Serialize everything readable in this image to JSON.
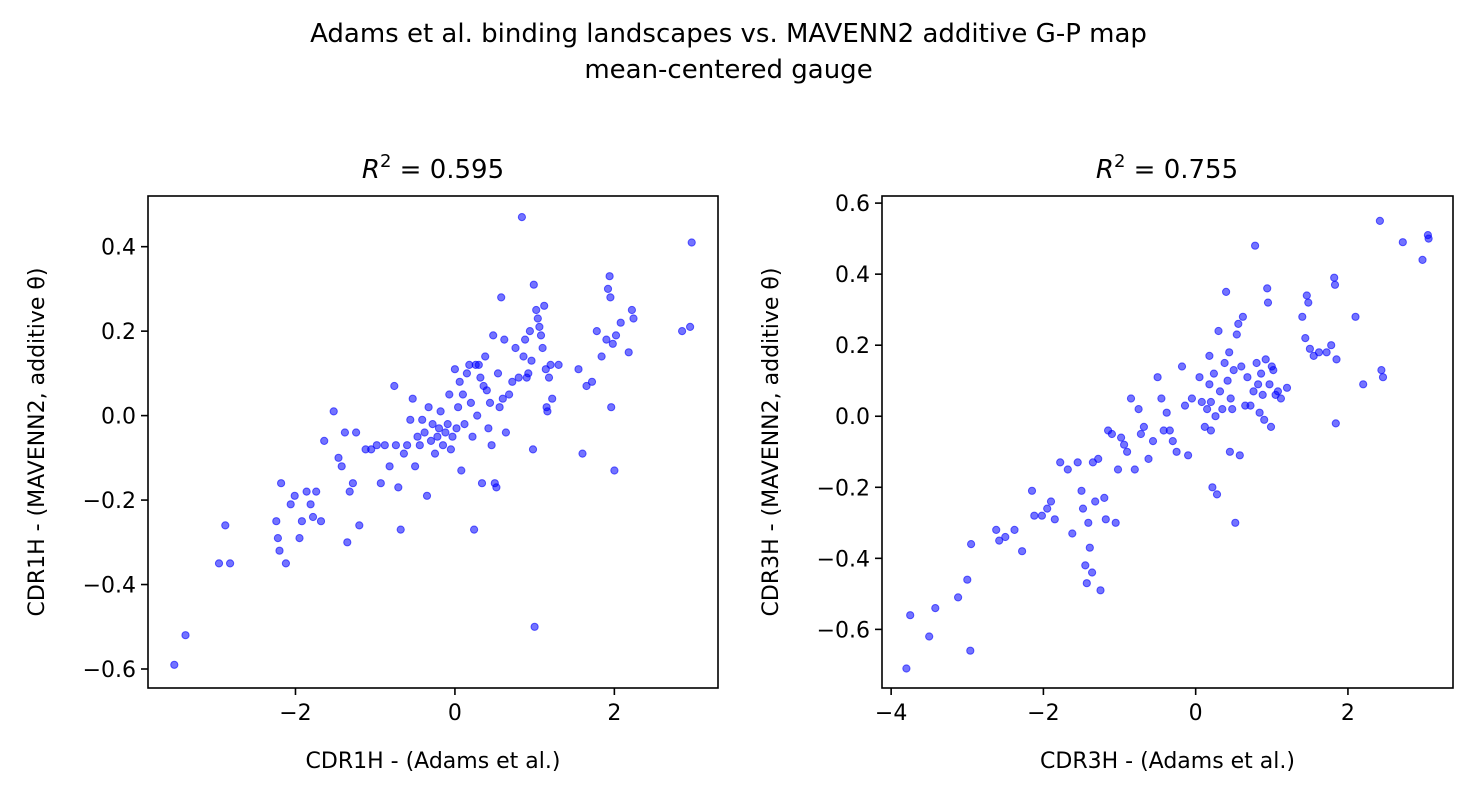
{
  "suptitle": {
    "line1": "Adams et al. binding landscapes vs. MAVENN2 additive G-P map",
    "line2": "mean-centered gauge"
  },
  "colors": {
    "points": "#0000ff",
    "axes": "#000000",
    "background": "#ffffff"
  },
  "chart_data": [
    {
      "type": "scatter",
      "title": "R² = 0.595",
      "title_parts": {
        "r": "R",
        "sup": "2",
        "rest": " = 0.595"
      },
      "xlabel": "CDR1H - (Adams et al.)",
      "ylabel": "CDR1H - (MAVENN2, additive θ)",
      "xlim": [
        -3.85,
        3.3
      ],
      "ylim": [
        -0.645,
        0.52
      ],
      "xticks": [
        -2,
        0,
        2
      ],
      "yticks": [
        -0.6,
        -0.4,
        -0.2,
        0.0,
        0.2,
        0.4
      ],
      "xtick_labels": [
        "−2",
        "0",
        "2"
      ],
      "ytick_labels": [
        "−0.6",
        "−0.4",
        "−0.2",
        "0.0",
        "0.2",
        "0.4"
      ],
      "grid": false,
      "points": [
        [
          -3.52,
          -0.59
        ],
        [
          -3.38,
          -0.52
        ],
        [
          -2.96,
          -0.35
        ],
        [
          -2.88,
          -0.26
        ],
        [
          -2.82,
          -0.35
        ],
        [
          -2.24,
          -0.25
        ],
        [
          -2.22,
          -0.29
        ],
        [
          -2.2,
          -0.32
        ],
        [
          -2.18,
          -0.16
        ],
        [
          -2.12,
          -0.35
        ],
        [
          -2.06,
          -0.21
        ],
        [
          -2.01,
          -0.19
        ],
        [
          -1.95,
          -0.29
        ],
        [
          -1.92,
          -0.25
        ],
        [
          -1.86,
          -0.18
        ],
        [
          -1.81,
          -0.21
        ],
        [
          -1.78,
          -0.24
        ],
        [
          -1.74,
          -0.18
        ],
        [
          -1.68,
          -0.25
        ],
        [
          -1.64,
          -0.06
        ],
        [
          -1.52,
          0.01
        ],
        [
          -1.46,
          -0.1
        ],
        [
          -1.42,
          -0.12
        ],
        [
          -1.38,
          -0.04
        ],
        [
          -1.35,
          -0.3
        ],
        [
          -1.32,
          -0.18
        ],
        [
          -1.28,
          -0.16
        ],
        [
          -1.24,
          -0.04
        ],
        [
          -1.2,
          -0.26
        ],
        [
          -1.12,
          -0.08
        ],
        [
          -1.05,
          -0.08
        ],
        [
          -0.98,
          -0.07
        ],
        [
          -0.93,
          -0.16
        ],
        [
          -0.88,
          -0.07
        ],
        [
          -0.82,
          -0.12
        ],
        [
          -0.76,
          0.07
        ],
        [
          -0.74,
          -0.07
        ],
        [
          -0.71,
          -0.17
        ],
        [
          -0.68,
          -0.27
        ],
        [
          -0.64,
          -0.09
        ],
        [
          -0.6,
          -0.07
        ],
        [
          -0.56,
          -0.01
        ],
        [
          -0.53,
          0.04
        ],
        [
          -0.5,
          -0.12
        ],
        [
          -0.47,
          -0.05
        ],
        [
          -0.44,
          -0.07
        ],
        [
          -0.41,
          -0.01
        ],
        [
          -0.38,
          -0.04
        ],
        [
          -0.35,
          -0.19
        ],
        [
          -0.33,
          0.02
        ],
        [
          -0.3,
          -0.06
        ],
        [
          -0.28,
          -0.02
        ],
        [
          -0.25,
          -0.09
        ],
        [
          -0.22,
          -0.05
        ],
        [
          -0.2,
          -0.03
        ],
        [
          -0.18,
          0.01
        ],
        [
          -0.15,
          -0.07
        ],
        [
          -0.12,
          -0.04
        ],
        [
          -0.09,
          -0.02
        ],
        [
          -0.07,
          0.05
        ],
        [
          -0.05,
          -0.08
        ],
        [
          -0.03,
          -0.05
        ],
        [
          0.0,
          0.11
        ],
        [
          0.02,
          -0.03
        ],
        [
          0.04,
          0.02
        ],
        [
          0.06,
          0.08
        ],
        [
          0.08,
          -0.13
        ],
        [
          0.1,
          0.05
        ],
        [
          0.12,
          -0.02
        ],
        [
          0.15,
          0.1
        ],
        [
          0.18,
          0.12
        ],
        [
          0.2,
          0.03
        ],
        [
          0.22,
          -0.05
        ],
        [
          0.24,
          -0.27
        ],
        [
          0.26,
          0.12
        ],
        [
          0.28,
          0.0
        ],
        [
          0.3,
          0.12
        ],
        [
          0.32,
          0.09
        ],
        [
          0.34,
          -0.16
        ],
        [
          0.36,
          0.07
        ],
        [
          0.38,
          0.14
        ],
        [
          0.4,
          0.06
        ],
        [
          0.42,
          -0.03
        ],
        [
          0.44,
          0.03
        ],
        [
          0.46,
          -0.07
        ],
        [
          0.48,
          0.19
        ],
        [
          0.5,
          -0.16
        ],
        [
          0.52,
          -0.17
        ],
        [
          0.54,
          0.1
        ],
        [
          0.56,
          0.02
        ],
        [
          0.58,
          0.28
        ],
        [
          0.6,
          0.04
        ],
        [
          0.62,
          0.18
        ],
        [
          0.64,
          -0.04
        ],
        [
          0.68,
          0.05
        ],
        [
          0.72,
          0.08
        ],
        [
          0.76,
          0.16
        ],
        [
          0.8,
          0.09
        ],
        [
          0.84,
          0.47
        ],
        [
          0.86,
          0.14
        ],
        [
          0.88,
          0.18
        ],
        [
          0.9,
          0.09
        ],
        [
          0.92,
          0.1
        ],
        [
          0.94,
          0.2
        ],
        [
          0.96,
          0.13
        ],
        [
          0.98,
          -0.08
        ],
        [
          0.99,
          0.31
        ],
        [
          1.0,
          -0.5
        ],
        [
          1.02,
          0.25
        ],
        [
          1.04,
          0.23
        ],
        [
          1.06,
          0.21
        ],
        [
          1.08,
          0.19
        ],
        [
          1.1,
          0.16
        ],
        [
          1.12,
          0.26
        ],
        [
          1.14,
          0.11
        ],
        [
          1.15,
          0.02
        ],
        [
          1.16,
          0.01
        ],
        [
          1.18,
          0.09
        ],
        [
          1.2,
          0.12
        ],
        [
          1.22,
          0.04
        ],
        [
          1.3,
          0.12
        ],
        [
          1.55,
          0.11
        ],
        [
          1.6,
          -0.09
        ],
        [
          1.65,
          0.07
        ],
        [
          1.72,
          0.08
        ],
        [
          1.78,
          0.2
        ],
        [
          1.84,
          0.14
        ],
        [
          1.9,
          0.18
        ],
        [
          1.92,
          0.3
        ],
        [
          1.94,
          0.33
        ],
        [
          1.95,
          0.28
        ],
        [
          1.96,
          0.02
        ],
        [
          1.98,
          0.17
        ],
        [
          2.0,
          -0.13
        ],
        [
          2.02,
          0.19
        ],
        [
          2.08,
          0.22
        ],
        [
          2.18,
          0.15
        ],
        [
          2.22,
          0.25
        ],
        [
          2.24,
          0.23
        ],
        [
          2.85,
          0.2
        ],
        [
          2.95,
          0.21
        ],
        [
          2.97,
          0.41
        ]
      ]
    },
    {
      "type": "scatter",
      "title": "R² = 0.755",
      "title_parts": {
        "r": "R",
        "sup": "2",
        "rest": " = 0.755"
      },
      "xlabel": "CDR3H - (Adams et al.)",
      "ylabel": "CDR3H - (MAVENN2, additive θ)",
      "xlim": [
        -4.12,
        3.38
      ],
      "ylim": [
        -0.765,
        0.62
      ],
      "xticks": [
        -4,
        -2,
        0,
        2
      ],
      "yticks": [
        -0.6,
        -0.4,
        -0.2,
        0.0,
        0.2,
        0.4,
        0.6
      ],
      "xtick_labels": [
        "−4",
        "−2",
        "0",
        "2"
      ],
      "ytick_labels": [
        "−0.6",
        "−0.4",
        "−0.2",
        "0.0",
        "0.2",
        "0.4",
        "0.6"
      ],
      "grid": false,
      "points": [
        [
          -3.8,
          -0.71
        ],
        [
          -3.75,
          -0.56
        ],
        [
          -3.5,
          -0.62
        ],
        [
          -3.42,
          -0.54
        ],
        [
          -3.12,
          -0.51
        ],
        [
          -3.0,
          -0.46
        ],
        [
          -2.96,
          -0.66
        ],
        [
          -2.95,
          -0.36
        ],
        [
          -2.62,
          -0.32
        ],
        [
          -2.58,
          -0.35
        ],
        [
          -2.5,
          -0.34
        ],
        [
          -2.38,
          -0.32
        ],
        [
          -2.28,
          -0.38
        ],
        [
          -2.15,
          -0.21
        ],
        [
          -2.12,
          -0.28
        ],
        [
          -2.02,
          -0.28
        ],
        [
          -1.95,
          -0.26
        ],
        [
          -1.9,
          -0.24
        ],
        [
          -1.85,
          -0.29
        ],
        [
          -1.78,
          -0.13
        ],
        [
          -1.68,
          -0.15
        ],
        [
          -1.62,
          -0.33
        ],
        [
          -1.55,
          -0.13
        ],
        [
          -1.5,
          -0.21
        ],
        [
          -1.48,
          -0.26
        ],
        [
          -1.45,
          -0.42
        ],
        [
          -1.43,
          -0.47
        ],
        [
          -1.41,
          -0.3
        ],
        [
          -1.39,
          -0.37
        ],
        [
          -1.36,
          -0.44
        ],
        [
          -1.35,
          -0.13
        ],
        [
          -1.32,
          -0.24
        ],
        [
          -1.28,
          -0.12
        ],
        [
          -1.25,
          -0.49
        ],
        [
          -1.2,
          -0.23
        ],
        [
          -1.18,
          -0.29
        ],
        [
          -1.15,
          -0.04
        ],
        [
          -1.1,
          -0.05
        ],
        [
          -1.05,
          -0.3
        ],
        [
          -1.02,
          -0.15
        ],
        [
          -0.98,
          -0.06
        ],
        [
          -0.94,
          -0.08
        ],
        [
          -0.9,
          -0.1
        ],
        [
          -0.85,
          0.05
        ],
        [
          -0.8,
          -0.15
        ],
        [
          -0.75,
          0.02
        ],
        [
          -0.72,
          -0.05
        ],
        [
          -0.68,
          -0.03
        ],
        [
          -0.62,
          -0.12
        ],
        [
          -0.56,
          -0.07
        ],
        [
          -0.5,
          0.11
        ],
        [
          -0.45,
          0.05
        ],
        [
          -0.42,
          -0.04
        ],
        [
          -0.38,
          0.01
        ],
        [
          -0.34,
          -0.04
        ],
        [
          -0.3,
          -0.07
        ],
        [
          -0.25,
          -0.1
        ],
        [
          -0.18,
          0.14
        ],
        [
          -0.14,
          0.03
        ],
        [
          -0.1,
          -0.11
        ],
        [
          -0.05,
          0.05
        ],
        [
          0.05,
          0.11
        ],
        [
          0.08,
          0.04
        ],
        [
          0.12,
          -0.03
        ],
        [
          0.15,
          0.02
        ],
        [
          0.18,
          0.09
        ],
        [
          0.18,
          0.17
        ],
        [
          0.2,
          0.04
        ],
        [
          0.2,
          -0.04
        ],
        [
          0.22,
          -0.2
        ],
        [
          0.24,
          0.12
        ],
        [
          0.26,
          0.0
        ],
        [
          0.28,
          -0.22
        ],
        [
          0.3,
          0.24
        ],
        [
          0.32,
          0.07
        ],
        [
          0.35,
          0.02
        ],
        [
          0.38,
          0.15
        ],
        [
          0.4,
          0.35
        ],
        [
          0.42,
          0.1
        ],
        [
          0.44,
          0.18
        ],
        [
          0.45,
          -0.1
        ],
        [
          0.46,
          0.05
        ],
        [
          0.48,
          0.02
        ],
        [
          0.5,
          0.13
        ],
        [
          0.52,
          -0.3
        ],
        [
          0.54,
          0.23
        ],
        [
          0.56,
          0.26
        ],
        [
          0.58,
          -0.11
        ],
        [
          0.6,
          0.14
        ],
        [
          0.62,
          0.28
        ],
        [
          0.65,
          0.03
        ],
        [
          0.68,
          0.11
        ],
        [
          0.72,
          0.03
        ],
        [
          0.76,
          0.07
        ],
        [
          0.78,
          0.48
        ],
        [
          0.8,
          0.15
        ],
        [
          0.82,
          0.09
        ],
        [
          0.84,
          0.01
        ],
        [
          0.86,
          0.12
        ],
        [
          0.88,
          0.06
        ],
        [
          0.9,
          -0.01
        ],
        [
          0.92,
          0.16
        ],
        [
          0.94,
          0.36
        ],
        [
          0.95,
          0.32
        ],
        [
          0.97,
          0.09
        ],
        [
          0.99,
          -0.03
        ],
        [
          1.0,
          0.14
        ],
        [
          1.02,
          0.13
        ],
        [
          1.05,
          0.06
        ],
        [
          1.08,
          0.07
        ],
        [
          1.12,
          0.05
        ],
        [
          1.2,
          0.08
        ],
        [
          1.4,
          0.28
        ],
        [
          1.44,
          0.22
        ],
        [
          1.46,
          0.34
        ],
        [
          1.48,
          0.32
        ],
        [
          1.5,
          0.19
        ],
        [
          1.55,
          0.17
        ],
        [
          1.62,
          0.18
        ],
        [
          1.72,
          0.18
        ],
        [
          1.78,
          0.2
        ],
        [
          1.82,
          0.39
        ],
        [
          1.83,
          0.37
        ],
        [
          1.85,
          0.16
        ],
        [
          1.84,
          -0.02
        ],
        [
          2.1,
          0.28
        ],
        [
          2.2,
          0.09
        ],
        [
          2.42,
          0.55
        ],
        [
          2.44,
          0.13
        ],
        [
          2.46,
          0.11
        ],
        [
          2.72,
          0.49
        ],
        [
          2.98,
          0.44
        ],
        [
          3.05,
          0.51
        ],
        [
          3.06,
          0.5
        ]
      ]
    }
  ]
}
